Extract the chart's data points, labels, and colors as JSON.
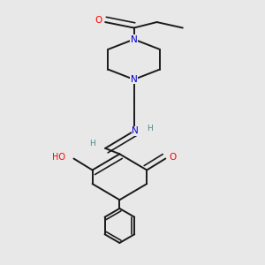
{
  "bg_color": "#e8e8e8",
  "bond_color": "#1a1a1a",
  "atom_colors": {
    "O": "#ff0000",
    "N": "#0000cc",
    "H": "#4a8a8a",
    "C": "#1a1a1a"
  },
  "lw": 1.4
}
